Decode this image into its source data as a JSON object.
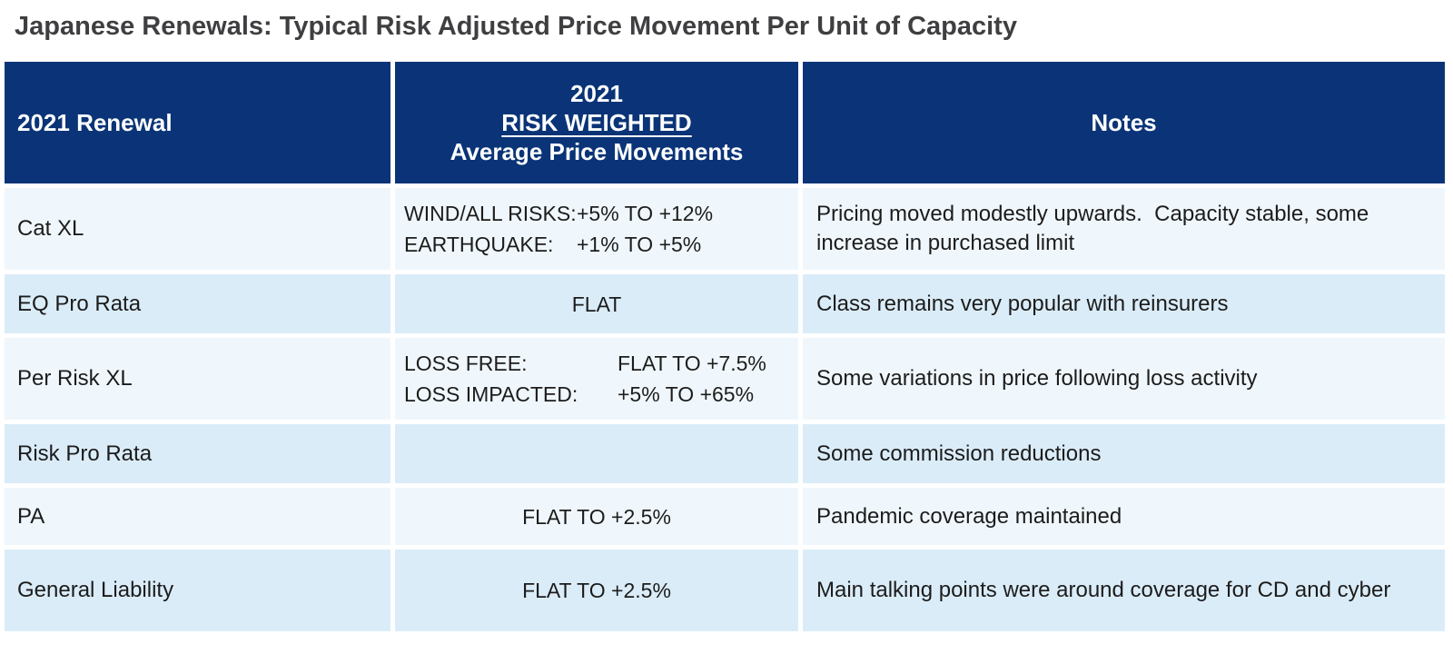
{
  "title": "Japanese Renewals: Typical Risk Adjusted Price Movement Per Unit of Capacity",
  "colors": {
    "header_bg": "#0a3477",
    "header_text": "#ffffff",
    "row_light_bg": "#f0f7fc",
    "row_dark_bg": "#daecf8",
    "title_text": "#3f3f42",
    "body_text": "#1c1c1c"
  },
  "table": {
    "header": {
      "renewal": "2021 Renewal",
      "move_line1": "2021",
      "move_line2": "RISK WEIGHTED",
      "move_line3": "Average Price Movements",
      "notes": "Notes"
    },
    "rows": [
      {
        "renewal": "Cat XL",
        "movements": [
          {
            "label": "WIND/ALL RISKS:",
            "value": "+5% TO +12%"
          },
          {
            "label": "EARTHQUAKE:",
            "value": "+1% TO +5%"
          }
        ],
        "movement_center": "",
        "notes": "Pricing moved modestly upwards.  Capacity stable, some increase in purchased limit"
      },
      {
        "renewal": "EQ Pro Rata",
        "movements": [],
        "movement_center": "FLAT",
        "notes": "Class remains very popular with reinsurers"
      },
      {
        "renewal": "Per Risk XL",
        "movements": [
          {
            "label": "LOSS FREE:",
            "value": "FLAT TO +7.5%"
          },
          {
            "label": "LOSS IMPACTED:",
            "value": "+5% TO +65%"
          }
        ],
        "movement_center": "",
        "notes": "Some variations in price following loss activity"
      },
      {
        "renewal": "Risk Pro Rata",
        "movements": [],
        "movement_center": "",
        "notes": "Some commission reductions"
      },
      {
        "renewal": "PA",
        "movements": [],
        "movement_center": "FLAT TO +2.5%",
        "notes": "Pandemic coverage maintained"
      },
      {
        "renewal": "General Liability",
        "movements": [],
        "movement_center": "FLAT TO +2.5%",
        "notes": "Main talking points were around coverage for CD and cyber"
      }
    ]
  }
}
